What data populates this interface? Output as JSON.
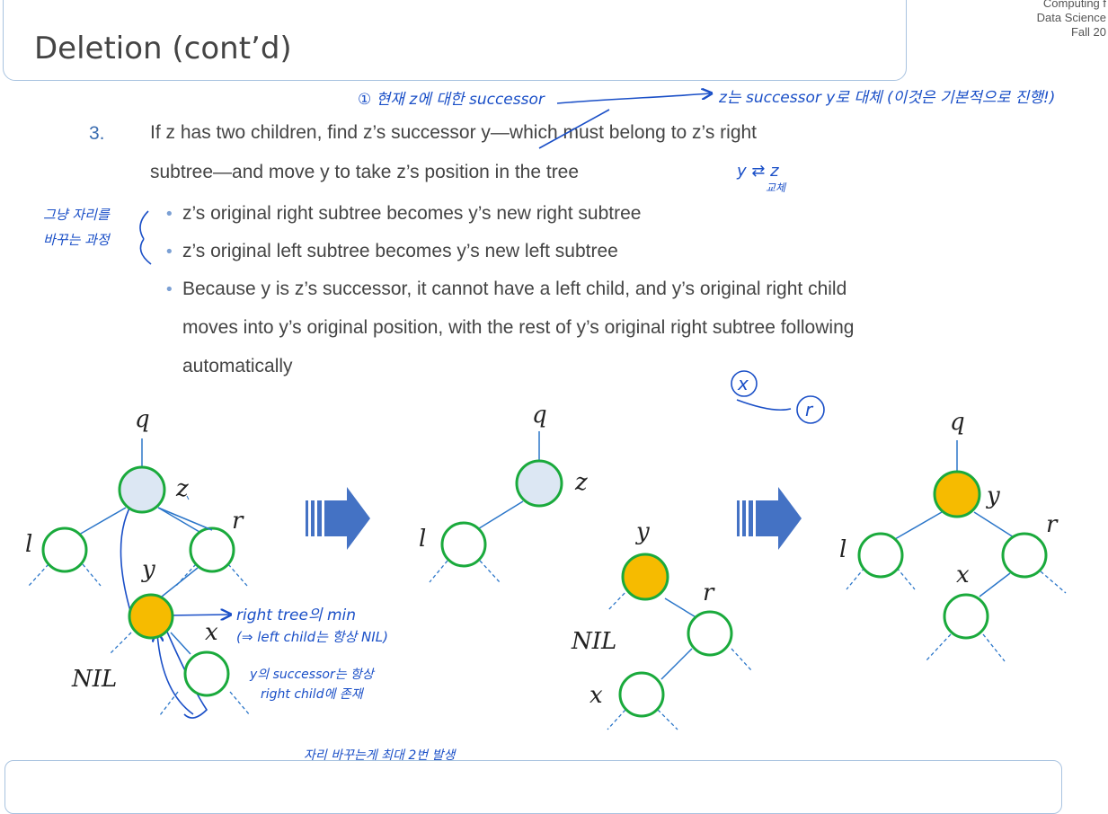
{
  "slide": {
    "title": "Deletion (cont’d)",
    "corner_lines": [
      "Computing f",
      "Data Science",
      "Fall 20"
    ]
  },
  "step": {
    "number": "3.",
    "line1": "If z has two children, find z’s successor y—which must belong to z’s right",
    "line2": "subtree—and move y to take z’s position in the tree",
    "bullets": [
      "z’s original right subtree becomes y’s new right subtree",
      "z’s original left subtree becomes y’s new left subtree"
    ],
    "bullet3": [
      "Because y is z’s successor, it cannot have a left child, and y’s original right child",
      "moves into y’s original position, with the rest of y’s original right subtree following",
      "automatically"
    ]
  },
  "handwriting": {
    "top_left": "① 현재 z에 대한 successor",
    "top_right": "z는 successor y로 대체 (이것은 기본적으로 진행!)",
    "swap_label": "y ⇄ z",
    "swap_sub": "교체",
    "side_line1": "그냥 자리를",
    "side_line2": "바꾸는 과정",
    "annot1": "right tree의 min",
    "annot2": "(⇒ left child는 항상 NIL)",
    "annot3": "y의 successor는 항상",
    "annot4": "right child에 존재",
    "bottom": "자리 바꾸는게 최대 2번 발생",
    "xr": [
      "x",
      "r"
    ]
  },
  "diagram": {
    "colors": {
      "node_stroke": "#1aaa3c",
      "z_fill": "#dce7f3",
      "y_fill": "#f6bb00",
      "arrow": "#3f6fc7",
      "ink": "#1a4fc7"
    },
    "tree1": {
      "q": "q",
      "z": "z",
      "l": "l",
      "r": "r",
      "y": "y",
      "x": "x",
      "nil": "NIL"
    },
    "tree2": {
      "q": "q",
      "z": "z",
      "l": "l",
      "y": "y",
      "r": "r",
      "nil": "NIL",
      "x": "x"
    },
    "tree3": {
      "q": "q",
      "y": "y",
      "l": "l",
      "r": "r",
      "x": "x"
    }
  }
}
